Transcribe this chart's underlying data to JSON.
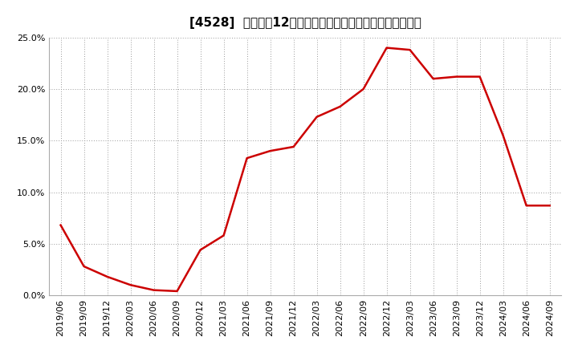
{
  "title": "[4528]  売上高の12か月移動合計の対前年同期増減率の推移",
  "line_color": "#cc0000",
  "background_color": "#ffffff",
  "grid_color": "#999999",
  "plot_bg_color": "#ffffff",
  "ylim": [
    0.0,
    0.25
  ],
  "yticks": [
    0.0,
    0.05,
    0.1,
    0.15,
    0.2,
    0.25
  ],
  "x_labels": [
    "2019/06",
    "2019/09",
    "2019/12",
    "2020/03",
    "2020/06",
    "2020/09",
    "2020/12",
    "2021/03",
    "2021/06",
    "2021/09",
    "2021/12",
    "2022/03",
    "2022/06",
    "2022/09",
    "2022/12",
    "2023/03",
    "2023/06",
    "2023/09",
    "2023/12",
    "2024/03",
    "2024/06",
    "2024/09"
  ],
  "values": [
    0.068,
    0.028,
    0.018,
    0.01,
    0.005,
    0.004,
    0.044,
    0.058,
    0.133,
    0.14,
    0.144,
    0.173,
    0.183,
    0.2,
    0.24,
    0.238,
    0.21,
    0.212,
    0.212,
    0.155,
    0.087,
    0.087
  ],
  "title_fontsize": 11,
  "tick_fontsize": 8,
  "line_width": 1.8
}
